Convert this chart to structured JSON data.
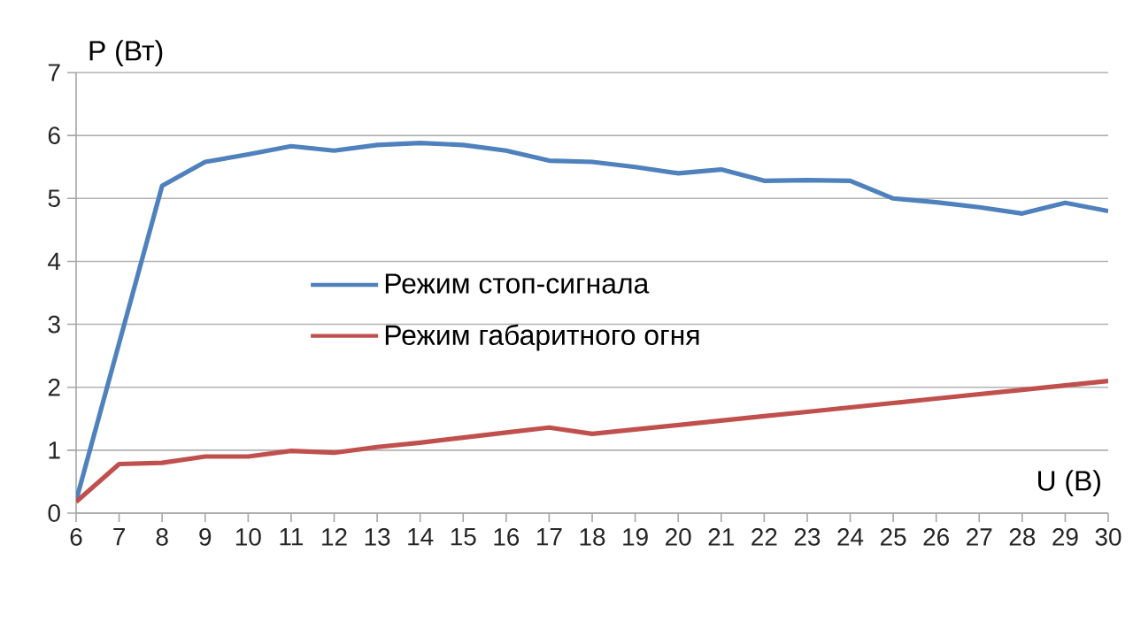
{
  "chart_data": {
    "type": "line",
    "xlabel": "U (В)",
    "ylabel": "P (Вт)",
    "x": [
      6,
      7,
      8,
      9,
      10,
      11,
      12,
      13,
      14,
      15,
      16,
      17,
      18,
      19,
      20,
      21,
      22,
      23,
      24,
      25,
      26,
      27,
      28,
      29,
      30
    ],
    "series": [
      {
        "name": "Режим стоп-сигнала",
        "color": "#4f81bd",
        "values": [
          0.2,
          2.7,
          5.2,
          5.58,
          5.7,
          5.83,
          5.76,
          5.85,
          5.88,
          5.85,
          5.76,
          5.6,
          5.58,
          5.5,
          5.4,
          5.46,
          5.28,
          5.29,
          5.28,
          5.0,
          4.94,
          4.86,
          4.76,
          4.93,
          4.8
        ]
      },
      {
        "name": "Режим габаритного огня",
        "color": "#c0504d",
        "values": [
          0.18,
          0.78,
          0.8,
          0.9,
          0.9,
          0.99,
          0.96,
          1.05,
          1.12,
          1.2,
          1.28,
          1.36,
          1.26,
          1.33,
          1.4,
          1.47,
          1.54,
          1.61,
          1.68,
          1.75,
          1.82,
          1.89,
          1.96,
          2.03,
          2.1
        ]
      }
    ],
    "xlim": [
      6,
      30
    ],
    "xticks": [
      6,
      7,
      8,
      9,
      10,
      11,
      12,
      13,
      14,
      15,
      16,
      17,
      18,
      19,
      20,
      21,
      22,
      23,
      24,
      25,
      26,
      27,
      28,
      29,
      30
    ],
    "ylim": [
      0,
      7
    ],
    "yticks": [
      0,
      1,
      2,
      3,
      4,
      5,
      6,
      7
    ],
    "grid": "y",
    "legend": "center",
    "marker": "none",
    "line_style": "solid"
  }
}
